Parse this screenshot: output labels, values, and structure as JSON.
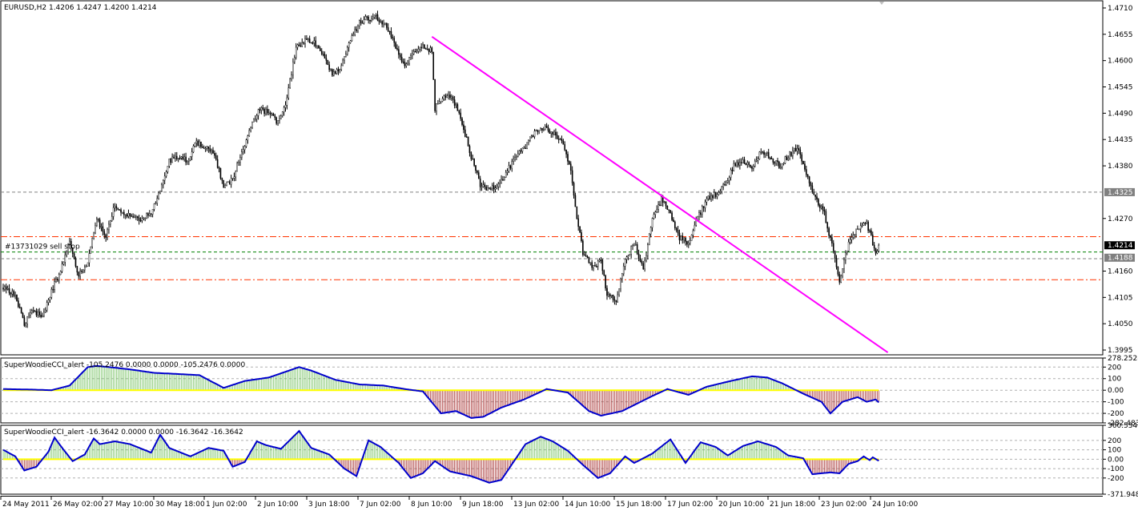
{
  "chart_data": [
    {
      "type": "candlestick",
      "header": "EURUSD,H2  1.4206 1.4247 1.4200 1.4214",
      "ylim": [
        1.3985,
        1.4725
      ],
      "y_ticks": [
        "1.4710",
        "1.4655",
        "1.4600",
        "1.4545",
        "1.4490",
        "1.4435",
        "1.4380",
        "1.4325",
        "1.4270",
        "1.4214",
        "1.4160",
        "1.4105",
        "1.4050",
        "1.3995"
      ],
      "price_markers": [
        {
          "label": "1.4325",
          "value": 1.4325,
          "color": "#808080"
        },
        {
          "label": "1.4214",
          "value": 1.4214,
          "color": "#000000"
        },
        {
          "label": "1.4188",
          "value": 1.4188,
          "color": "#808080"
        }
      ],
      "horizontal_lines": [
        {
          "value": 1.4325,
          "color": "#808080",
          "style": "dashed"
        },
        {
          "value": 1.4232,
          "color": "#ff3300",
          "style": "dashdot"
        },
        {
          "value": 1.42,
          "color": "#008000",
          "style": "dashed"
        },
        {
          "value": 1.4186,
          "color": "#808080",
          "style": "dashed"
        },
        {
          "value": 1.4142,
          "color": "#ff3300",
          "style": "dashdot"
        }
      ],
      "order_label": "#13731029 sell stop",
      "order_value": 1.42,
      "trendline": {
        "start_bar": 284,
        "start_value": 1.465,
        "end_bar": 586,
        "end_value": 1.399,
        "color": "#ff00ff"
      },
      "close_path": [
        [
          0,
          1.4125
        ],
        [
          8,
          1.411
        ],
        [
          14,
          1.405
        ],
        [
          20,
          1.408
        ],
        [
          26,
          1.406
        ],
        [
          32,
          1.412
        ],
        [
          38,
          1.416
        ],
        [
          44,
          1.422
        ],
        [
          50,
          1.415
        ],
        [
          56,
          1.418
        ],
        [
          62,
          1.427
        ],
        [
          68,
          1.423
        ],
        [
          74,
          1.43
        ],
        [
          80,
          1.428
        ],
        [
          86,
          1.427
        ],
        [
          92,
          1.427
        ],
        [
          98,
          1.428
        ],
        [
          104,
          1.433
        ],
        [
          110,
          1.439
        ],
        [
          116,
          1.44
        ],
        [
          122,
          1.439
        ],
        [
          128,
          1.443
        ],
        [
          134,
          1.442
        ],
        [
          140,
          1.44
        ],
        [
          146,
          1.434
        ],
        [
          152,
          1.435
        ],
        [
          158,
          1.441
        ],
        [
          164,
          1.446
        ],
        [
          170,
          1.45
        ],
        [
          176,
          1.449
        ],
        [
          182,
          1.447
        ],
        [
          188,
          1.452
        ],
        [
          194,
          1.463
        ],
        [
          200,
          1.464
        ],
        [
          206,
          1.464
        ],
        [
          212,
          1.461
        ],
        [
          218,
          1.457
        ],
        [
          224,
          1.459
        ],
        [
          230,
          1.464
        ],
        [
          236,
          1.468
        ],
        [
          242,
          1.469
        ],
        [
          248,
          1.469
        ],
        [
          254,
          1.467
        ],
        [
          260,
          1.463
        ],
        [
          266,
          1.459
        ],
        [
          272,
          1.462
        ],
        [
          278,
          1.463
        ],
        [
          284,
          1.462
        ],
        [
          286,
          1.45
        ],
        [
          292,
          1.453
        ],
        [
          298,
          1.452
        ],
        [
          304,
          1.447
        ],
        [
          310,
          1.44
        ],
        [
          316,
          1.434
        ],
        [
          322,
          1.433
        ],
        [
          328,
          1.434
        ],
        [
          334,
          1.437
        ],
        [
          340,
          1.44
        ],
        [
          346,
          1.442
        ],
        [
          352,
          1.445
        ],
        [
          358,
          1.446
        ],
        [
          364,
          1.445
        ],
        [
          370,
          1.443
        ],
        [
          376,
          1.437
        ],
        [
          380,
          1.427
        ],
        [
          384,
          1.42
        ],
        [
          390,
          1.417
        ],
        [
          396,
          1.418
        ],
        [
          400,
          1.411
        ],
        [
          406,
          1.41
        ],
        [
          412,
          1.418
        ],
        [
          418,
          1.422
        ],
        [
          424,
          1.416
        ],
        [
          430,
          1.427
        ],
        [
          436,
          1.431
        ],
        [
          442,
          1.428
        ],
        [
          448,
          1.423
        ],
        [
          454,
          1.422
        ],
        [
          460,
          1.427
        ],
        [
          466,
          1.431
        ],
        [
          472,
          1.432
        ],
        [
          478,
          1.434
        ],
        [
          484,
          1.438
        ],
        [
          490,
          1.439
        ],
        [
          496,
          1.438
        ],
        [
          502,
          1.441
        ],
        [
          508,
          1.44
        ],
        [
          514,
          1.438
        ],
        [
          520,
          1.44
        ],
        [
          526,
          1.442
        ],
        [
          532,
          1.436
        ],
        [
          538,
          1.431
        ],
        [
          544,
          1.428
        ],
        [
          550,
          1.42
        ],
        [
          554,
          1.414
        ],
        [
          560,
          1.422
        ],
        [
          566,
          1.425
        ],
        [
          572,
          1.426
        ],
        [
          578,
          1.42
        ],
        [
          580,
          1.4214
        ]
      ],
      "x_ticks": [
        "24 May 2011",
        "26 May 02:00",
        "27 May 10:00",
        "30 May 18:00",
        "1 Jun 02:00",
        "2 Jun 10:00",
        "3 Jun 18:00",
        "7 Jun 02:00",
        "8 Jun 10:00",
        "9 Jun 18:00",
        "13 Jun 02:00",
        "14 Jun 10:00",
        "15 Jun 18:00",
        "17 Jun 02:00",
        "20 Jun 10:00",
        "21 Jun 18:00",
        "23 Jun 02:00",
        "24 Jun 10:00"
      ]
    },
    {
      "type": "oscillator",
      "header": "SuperWoodieCCI_alert -105.2476 0.0000 0.0000 -105.2476 0.0000",
      "ylim": [
        -282.483,
        278.2528
      ],
      "y_ticks": [
        "278.2528",
        "200",
        "100",
        "0.00",
        "-100",
        "-200",
        "-282.483"
      ],
      "levels": [
        200,
        100,
        0,
        -100,
        -200
      ],
      "cci_path": [
        [
          0,
          10
        ],
        [
          20,
          5
        ],
        [
          32,
          0
        ],
        [
          44,
          40
        ],
        [
          56,
          200
        ],
        [
          62,
          210
        ],
        [
          70,
          200
        ],
        [
          84,
          180
        ],
        [
          100,
          150
        ],
        [
          116,
          140
        ],
        [
          130,
          130
        ],
        [
          146,
          20
        ],
        [
          160,
          80
        ],
        [
          176,
          110
        ],
        [
          196,
          200
        ],
        [
          204,
          170
        ],
        [
          220,
          90
        ],
        [
          236,
          50
        ],
        [
          252,
          40
        ],
        [
          266,
          10
        ],
        [
          278,
          -10
        ],
        [
          290,
          -200
        ],
        [
          300,
          -180
        ],
        [
          310,
          -240
        ],
        [
          318,
          -230
        ],
        [
          330,
          -150
        ],
        [
          345,
          -80
        ],
        [
          360,
          10
        ],
        [
          374,
          -20
        ],
        [
          388,
          -180
        ],
        [
          396,
          -220
        ],
        [
          410,
          -180
        ],
        [
          430,
          -50
        ],
        [
          440,
          10
        ],
        [
          454,
          -40
        ],
        [
          466,
          30
        ],
        [
          482,
          80
        ],
        [
          496,
          120
        ],
        [
          506,
          110
        ],
        [
          516,
          60
        ],
        [
          530,
          -30
        ],
        [
          542,
          -100
        ],
        [
          548,
          -200
        ],
        [
          556,
          -100
        ],
        [
          566,
          -60
        ],
        [
          572,
          -100
        ],
        [
          578,
          -80
        ],
        [
          580,
          -105
        ]
      ]
    },
    {
      "type": "oscillator",
      "header": "SuperWoodieCCI_alert -16.3642 0.0000 0.0000 -16.3642 -16.3642",
      "ylim": [
        -371.948,
        360.5347
      ],
      "y_ticks": [
        "360.5347",
        "200",
        "100",
        "0.00",
        "-100",
        "-200",
        "-371.948"
      ],
      "levels": [
        200,
        100,
        0,
        -100,
        -200
      ],
      "cci_path": [
        [
          0,
          100
        ],
        [
          8,
          30
        ],
        [
          14,
          -120
        ],
        [
          22,
          -80
        ],
        [
          30,
          80
        ],
        [
          34,
          230
        ],
        [
          40,
          100
        ],
        [
          46,
          -20
        ],
        [
          54,
          50
        ],
        [
          60,
          220
        ],
        [
          64,
          160
        ],
        [
          74,
          190
        ],
        [
          84,
          160
        ],
        [
          98,
          70
        ],
        [
          104,
          260
        ],
        [
          110,
          120
        ],
        [
          124,
          30
        ],
        [
          136,
          120
        ],
        [
          146,
          90
        ],
        [
          152,
          -80
        ],
        [
          160,
          -30
        ],
        [
          168,
          190
        ],
        [
          174,
          150
        ],
        [
          184,
          110
        ],
        [
          196,
          300
        ],
        [
          204,
          120
        ],
        [
          216,
          50
        ],
        [
          226,
          -100
        ],
        [
          234,
          -180
        ],
        [
          242,
          200
        ],
        [
          250,
          130
        ],
        [
          262,
          -40
        ],
        [
          270,
          -200
        ],
        [
          278,
          -150
        ],
        [
          286,
          -20
        ],
        [
          296,
          -130
        ],
        [
          310,
          -180
        ],
        [
          322,
          -250
        ],
        [
          330,
          -220
        ],
        [
          346,
          160
        ],
        [
          356,
          240
        ],
        [
          364,
          190
        ],
        [
          374,
          90
        ],
        [
          384,
          -60
        ],
        [
          394,
          -200
        ],
        [
          402,
          -150
        ],
        [
          412,
          30
        ],
        [
          418,
          -40
        ],
        [
          430,
          60
        ],
        [
          442,
          210
        ],
        [
          452,
          -40
        ],
        [
          462,
          180
        ],
        [
          472,
          130
        ],
        [
          480,
          40
        ],
        [
          490,
          140
        ],
        [
          500,
          190
        ],
        [
          512,
          130
        ],
        [
          520,
          40
        ],
        [
          530,
          10
        ],
        [
          536,
          -160
        ],
        [
          548,
          -140
        ],
        [
          554,
          -150
        ],
        [
          560,
          -50
        ],
        [
          566,
          -20
        ],
        [
          570,
          30
        ],
        [
          574,
          -10
        ],
        [
          576,
          20
        ],
        [
          580,
          -16
        ]
      ]
    }
  ]
}
